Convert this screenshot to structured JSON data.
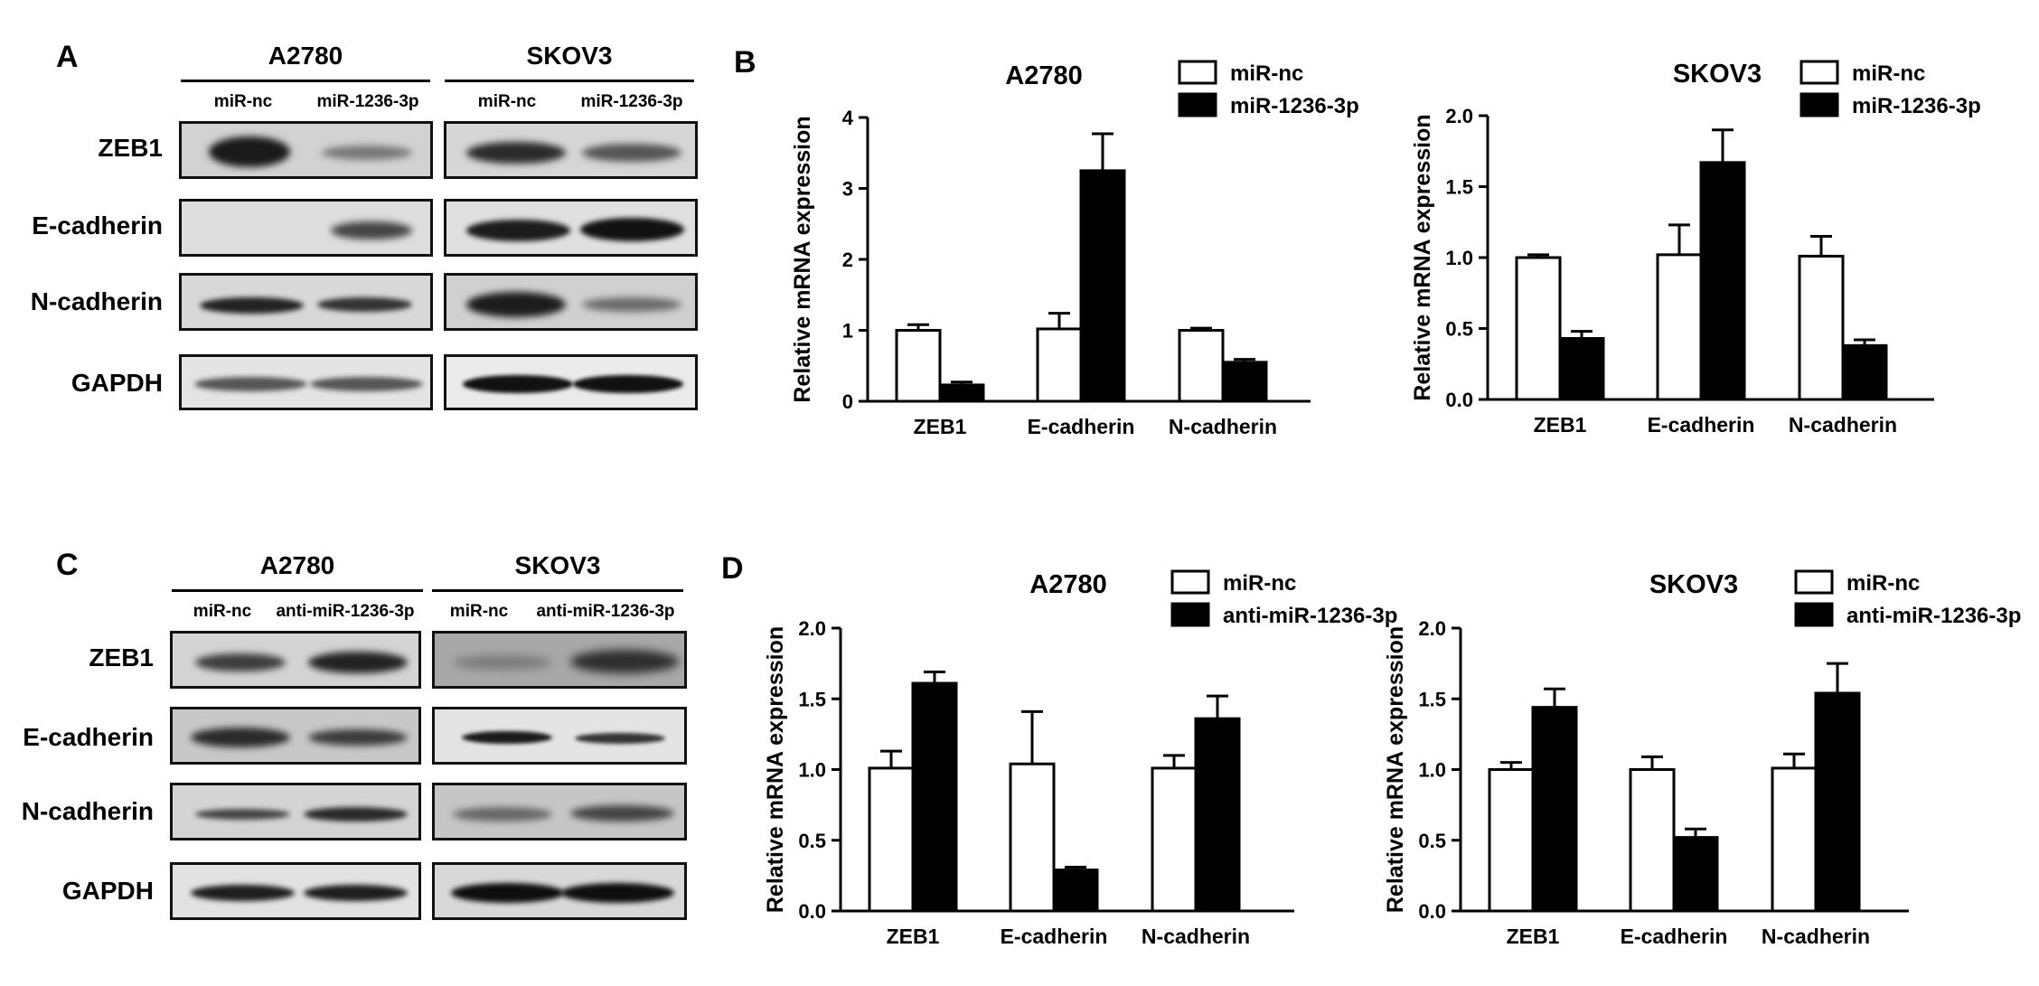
{
  "panels": {
    "A": {
      "letter": "A",
      "groups": [
        {
          "title": "A2780",
          "lanes": [
            "miR-nc",
            "miR-1236-3p"
          ]
        },
        {
          "title": "SKOV3",
          "lanes": [
            "miR-nc",
            "miR-1236-3p"
          ]
        }
      ],
      "rows": [
        "ZEB1",
        "E-cadherin",
        "N-cadherin",
        "GAPDH"
      ]
    },
    "B": {
      "letter": "B"
    },
    "C": {
      "letter": "C",
      "groups": [
        {
          "title": "A2780",
          "lanes": [
            "miR-nc",
            "anti-miR-1236-3p"
          ]
        },
        {
          "title": "SKOV3",
          "lanes": [
            "miR-nc",
            "anti-miR-1236-3p"
          ]
        }
      ],
      "rows": [
        "ZEB1",
        "E-cadherin",
        "N-cadherin",
        "GAPDH"
      ]
    },
    "D": {
      "letter": "D"
    }
  },
  "colors": {
    "control_fill": "#ffffff",
    "treated_fill": "#000000",
    "axis": "#000000"
  },
  "chart_data": [
    {
      "type": "bar",
      "panel": "B",
      "title": "A2780",
      "categories": [
        "ZEB1",
        "E-cadherin",
        "N-cadherin"
      ],
      "ylabel": "Relative mRNA expression",
      "ylim": [
        0,
        4
      ],
      "yticks": [
        "0",
        "1",
        "2",
        "3",
        "4"
      ],
      "series": [
        {
          "name": "miR-nc",
          "values": [
            1.0,
            1.02,
            1.0
          ],
          "errors": [
            0.08,
            0.22,
            0.03
          ]
        },
        {
          "name": "miR-1236-3p",
          "values": [
            0.23,
            3.25,
            0.55
          ],
          "errors": [
            0.04,
            0.52,
            0.04
          ]
        }
      ]
    },
    {
      "type": "bar",
      "panel": "B",
      "title": "SKOV3",
      "categories": [
        "ZEB1",
        "E-cadherin",
        "N-cadherin"
      ],
      "ylabel": "Relative mRNA expression",
      "ylim": [
        0,
        2.0
      ],
      "yticks": [
        "0.0",
        "0.5",
        "1.0",
        "1.5",
        "2.0"
      ],
      "series": [
        {
          "name": "miR-nc",
          "values": [
            1.0,
            1.02,
            1.01
          ],
          "errors": [
            0.02,
            0.21,
            0.14
          ]
        },
        {
          "name": "miR-1236-3p",
          "values": [
            0.43,
            1.67,
            0.38
          ],
          "errors": [
            0.05,
            0.23,
            0.04
          ]
        }
      ]
    },
    {
      "type": "bar",
      "panel": "D",
      "title": "A2780",
      "categories": [
        "ZEB1",
        "E-cadherin",
        "N-cadherin"
      ],
      "ylabel": "Relative mRNA expression",
      "ylim": [
        0,
        2.0
      ],
      "yticks": [
        "0.0",
        "0.5",
        "1.0",
        "1.5",
        "2.0"
      ],
      "series": [
        {
          "name": "miR-nc",
          "values": [
            1.01,
            1.04,
            1.01
          ],
          "errors": [
            0.12,
            0.37,
            0.09
          ]
        },
        {
          "name": "anti-miR-1236-3p",
          "values": [
            1.61,
            0.29,
            1.36
          ],
          "errors": [
            0.08,
            0.02,
            0.16
          ]
        }
      ]
    },
    {
      "type": "bar",
      "panel": "D",
      "title": "SKOV3",
      "categories": [
        "ZEB1",
        "E-cadherin",
        "N-cadherin"
      ],
      "ylabel": "Relative mRNA expression",
      "ylim": [
        0,
        2.0
      ],
      "yticks": [
        "0.0",
        "0.5",
        "1.0",
        "1.5",
        "2.0"
      ],
      "series": [
        {
          "name": "miR-nc",
          "values": [
            1.0,
            1.0,
            1.01
          ],
          "errors": [
            0.05,
            0.09,
            0.1
          ]
        },
        {
          "name": "anti-miR-1236-3p",
          "values": [
            1.44,
            0.52,
            1.54
          ],
          "errors": [
            0.13,
            0.06,
            0.21
          ]
        }
      ]
    }
  ]
}
